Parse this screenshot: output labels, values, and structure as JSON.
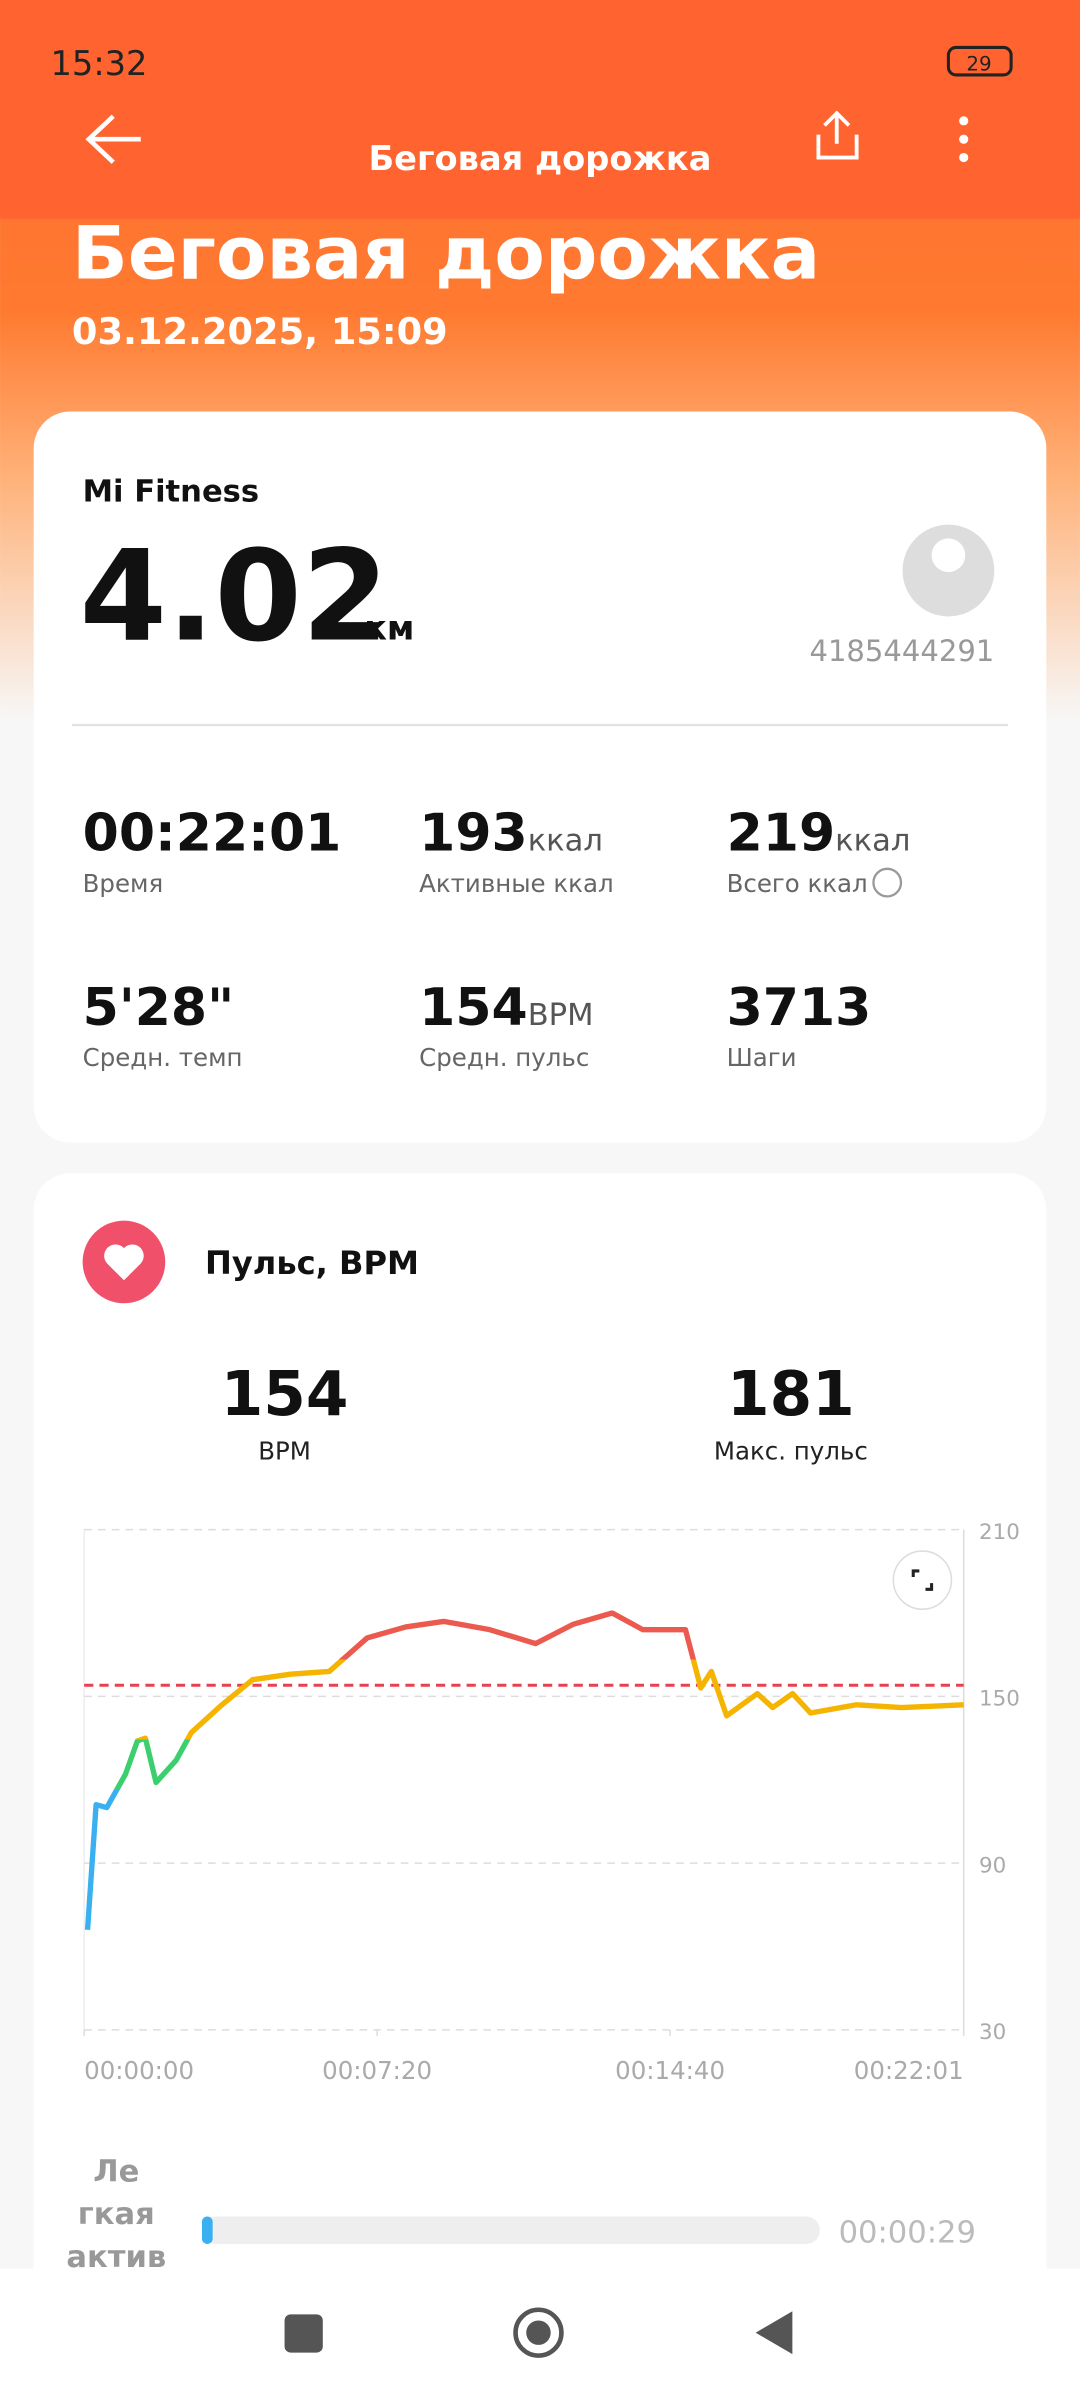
{
  "status_bar": {
    "time": "15:32",
    "battery": "29"
  },
  "header": {
    "title": "Беговая дорожка"
  },
  "hero": {
    "title": "Беговая дорожка",
    "date": "03.12.2025, 15:09"
  },
  "summary": {
    "source": "Mi Fitness",
    "distance": "4.02",
    "unit": "км",
    "user_id": "4185444291",
    "stats": [
      {
        "value": "00:22:01",
        "label": "Время"
      },
      {
        "value": "193",
        "unit": "ккал",
        "label": "Активные ккал"
      },
      {
        "value": "219",
        "unit": "ккал",
        "label": "Всего ккал"
      },
      {
        "value": "5'28\"",
        "label": "Средн. темп"
      },
      {
        "value": "154",
        "unit": "BPM",
        "label": "Средн. пульс"
      },
      {
        "value": "3713",
        "label": "Шаги"
      }
    ]
  },
  "heart": {
    "title": "Пульс, BPM",
    "avg": {
      "value": 154,
      "label": "BPM"
    },
    "max": {
      "value": 181,
      "label": "Макс. пульс"
    }
  },
  "heart_chart": {
    "type": "line",
    "x": [
      5,
      18,
      34,
      62,
      80,
      92,
      108,
      138,
      161,
      207,
      253,
      310,
      368,
      425,
      483,
      540,
      609,
      678,
      735,
      793,
      839,
      903,
      926,
      942,
      965,
      1011,
      1034,
      1064,
      1091,
      1160,
      1228,
      1321
    ],
    "values": [
      66,
      111,
      110,
      122,
      134,
      135,
      119,
      127,
      137,
      147,
      156,
      158,
      159,
      171,
      175,
      177,
      174,
      169,
      176,
      180,
      174,
      174,
      153,
      159,
      143,
      151,
      146,
      151,
      144,
      147,
      146,
      147
    ],
    "colors": [
      "#3ab0f0",
      "#3ccf6e",
      "#f5b400",
      "#ec5a4f"
    ],
    "average_color": "#e8404f",
    "xlim": [
      0,
      1321
    ],
    "xticks": [
      {
        "value": 0,
        "label": "00:00:00"
      },
      {
        "value": 440,
        "label": "00:07:20"
      },
      {
        "value": 880,
        "label": "00:14:40"
      },
      {
        "value": 1321,
        "label": "00:22:01"
      }
    ],
    "ylim": [
      30,
      210
    ],
    "yticks": [
      210,
      150,
      90,
      30
    ],
    "grid": true
  },
  "zones": [
    {
      "label_lines": [
        "Ле",
        "гкая",
        "актив"
      ],
      "duration": "00:00:29"
    }
  ]
}
